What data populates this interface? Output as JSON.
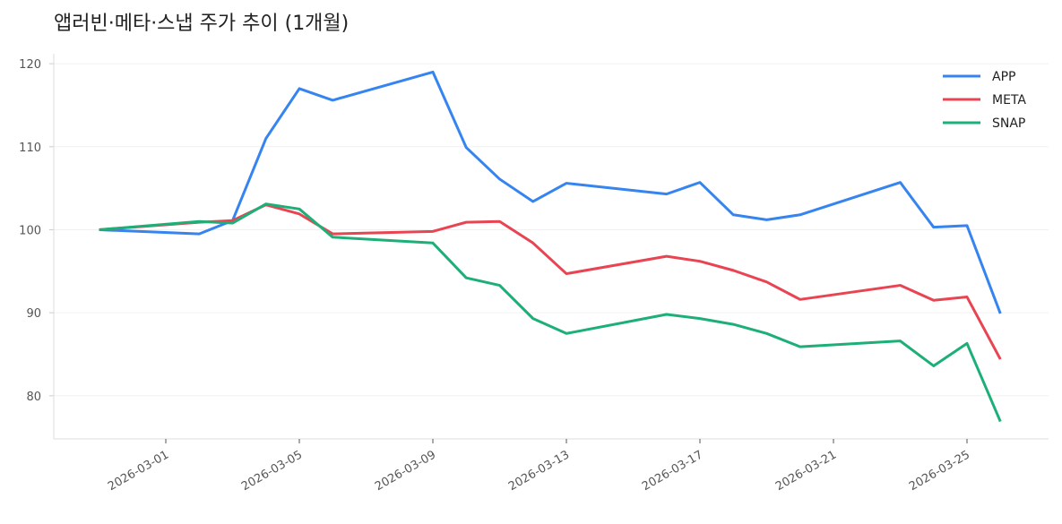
{
  "chart_data": {
    "type": "line",
    "title": "앱러빈·메타·스냅 주가 추이 (1개월)",
    "xlabel": "",
    "ylabel": "",
    "ylim": [
      74.8,
      121.2
    ],
    "yticks": [
      80,
      90,
      100,
      110,
      120
    ],
    "xticks": [
      "2026-03-01",
      "2026-03-05",
      "2026-03-09",
      "2026-03-13",
      "2026-03-17",
      "2026-03-21",
      "2026-03-25"
    ],
    "grid": "horizontal",
    "legend_position": "top-right",
    "x": [
      "2026-02-27",
      "2026-03-02",
      "2026-03-03",
      "2026-03-04",
      "2026-03-05",
      "2026-03-06",
      "2026-03-09",
      "2026-03-10",
      "2026-03-11",
      "2026-03-12",
      "2026-03-13",
      "2026-03-16",
      "2026-03-17",
      "2026-03-18",
      "2026-03-19",
      "2026-03-20",
      "2026-03-23",
      "2026-03-24",
      "2026-03-25",
      "2026-03-26"
    ],
    "series": [
      {
        "name": "APP",
        "color": "#3584f0",
        "values": [
          100,
          99.5,
          101.1,
          111.0,
          117.0,
          115.6,
          119.0,
          109.9,
          106.1,
          103.4,
          105.6,
          104.3,
          105.7,
          101.8,
          101.2,
          101.8,
          105.7,
          100.3,
          100.5,
          89.9
        ]
      },
      {
        "name": "META",
        "color": "#e84452",
        "values": [
          100,
          100.9,
          101.1,
          103.0,
          101.9,
          99.5,
          99.8,
          100.9,
          101.0,
          98.4,
          94.7,
          96.8,
          96.2,
          95.1,
          93.7,
          91.6,
          93.3,
          91.5,
          91.9,
          84.4
        ]
      },
      {
        "name": "SNAP",
        "color": "#1daf78",
        "values": [
          100,
          101.0,
          100.8,
          103.1,
          102.5,
          99.1,
          98.4,
          94.2,
          93.3,
          89.3,
          87.5,
          89.8,
          89.3,
          88.6,
          87.5,
          85.9,
          86.6,
          83.6,
          86.3,
          76.9
        ]
      }
    ]
  }
}
